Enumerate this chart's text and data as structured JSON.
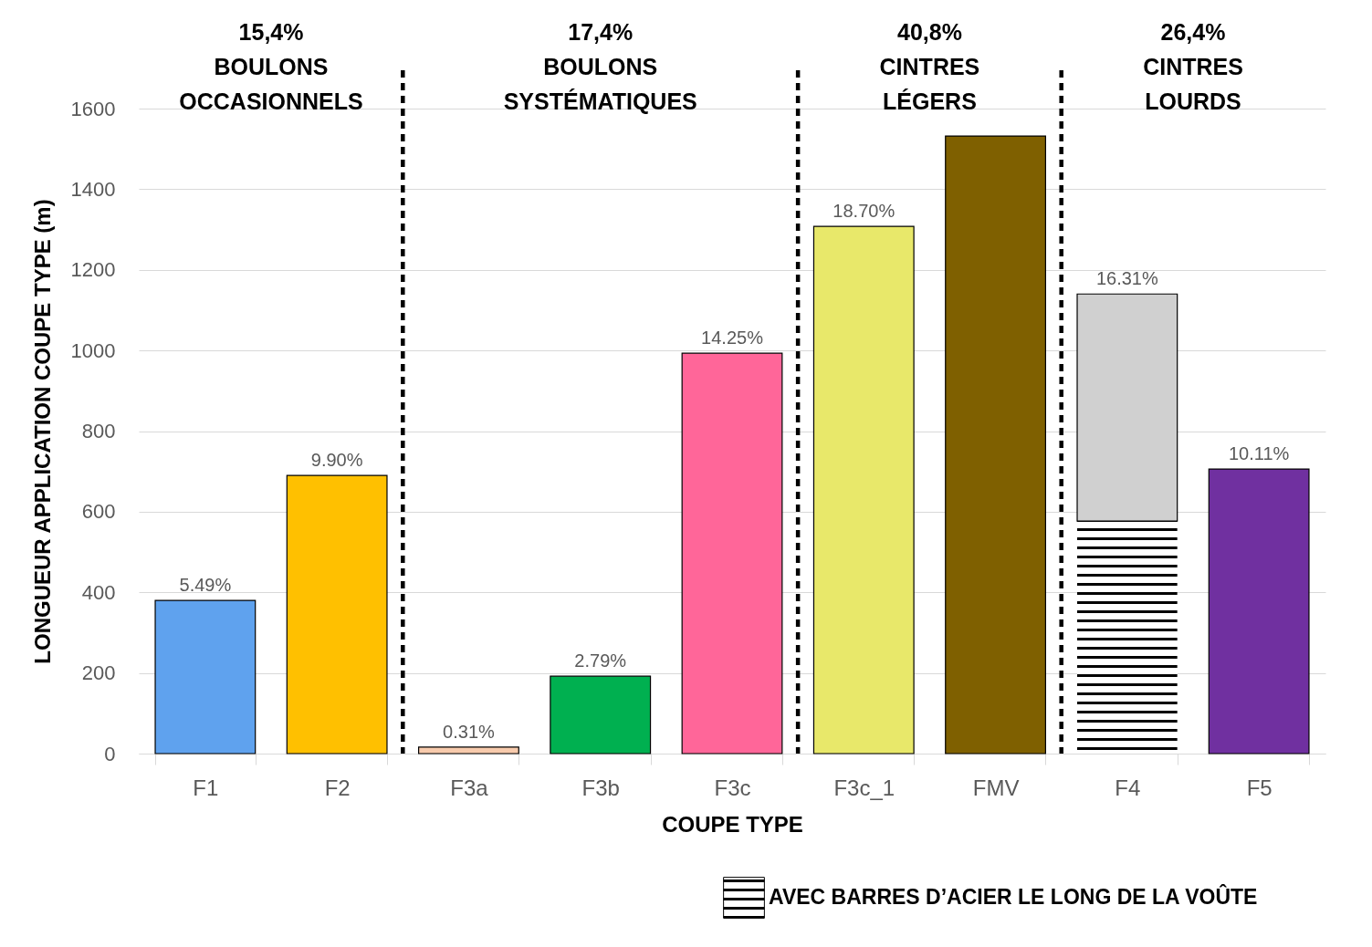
{
  "chart_data": {
    "type": "bar",
    "stacked": true,
    "xlabel": "COUPE TYPE",
    "ylabel": "LONGUEUR APPLICATION COUPE TYPE (m)",
    "categories": [
      "F1",
      "F2",
      "F3a",
      "F3b",
      "F3c",
      "F3c_1",
      "FMV",
      "F4",
      "F5"
    ],
    "series": [
      {
        "name": "AVEC BARRES D’ACIER LE LONG DE LA VOÛTE",
        "color": "#ffffff",
        "values": [
          null,
          null,
          null,
          null,
          null,
          null,
          null,
          577,
          null
        ]
      },
      {
        "colors": [
          "#5fa2ee",
          "#ffc000",
          "#f8cbad",
          "#00b050",
          "#ff6699",
          "#e8e86a",
          "#7f6000",
          "#d0d0d0",
          "#7030a0"
        ],
        "values": [
          380,
          690,
          16,
          192,
          993,
          1308,
          1532,
          563,
          706
        ]
      }
    ],
    "ylim": [
      0,
      1600
    ],
    "yticks": [
      0,
      200,
      400,
      600,
      800,
      1000,
      1200,
      1400,
      1600
    ],
    "grid": "y",
    "legend": "bottom right",
    "annotations": [
      "15,4%\nBOULONS\nOCCASIONNELS",
      "17,4%\nBOULONS\nSYSTÉMATIQUES",
      "40,8%\nCINTRES\nLÉGERS",
      "26,4%\nCINTRES\nLOURDS",
      {
        "text": "5.49%",
        "x": "F1",
        "y": 380
      },
      {
        "text": "9.90%",
        "x": "F2",
        "y": 690
      },
      {
        "text": "0.31%",
        "x": "F3a",
        "y": 16
      },
      {
        "text": "2.79%",
        "x": "F3b",
        "y": 192
      },
      {
        "text": "14.25%",
        "x": "F3c",
        "y": 993
      },
      {
        "text": "18.70%",
        "x": "F3c_1",
        "y": 1308
      },
      {
        "text": "16.31%",
        "x": "F4",
        "y": 1140
      },
      {
        "text": "10.11%",
        "x": "F5",
        "y": 706
      }
    ]
  }
}
